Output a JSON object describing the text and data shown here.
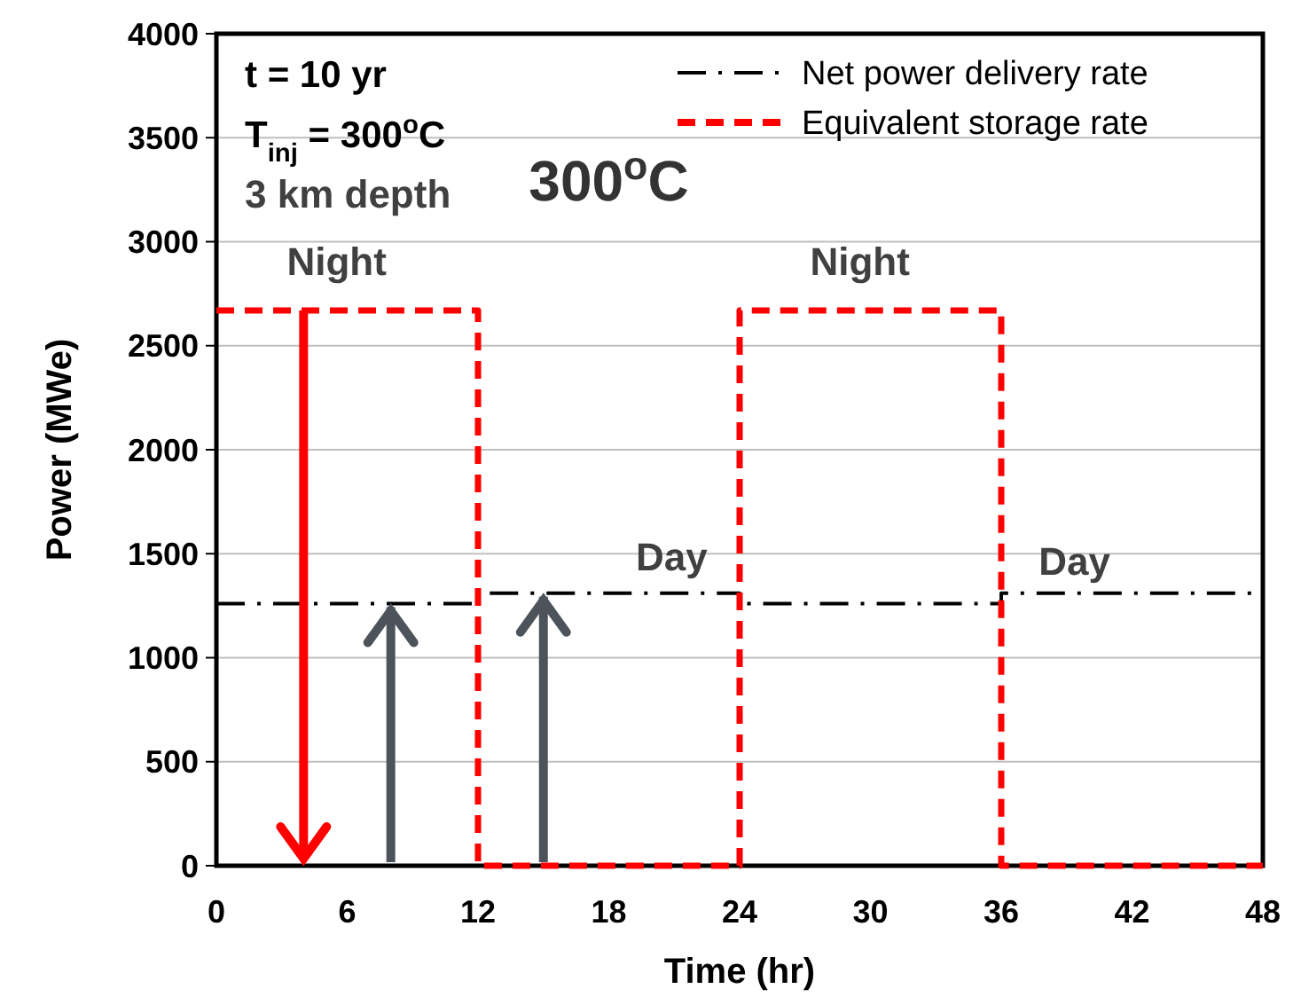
{
  "chart_data": {
    "type": "line",
    "title": "300$^{o}$C",
    "xlabel": "Time (hr)",
    "ylabel": "Power (MWe)",
    "xlim": [
      0,
      48
    ],
    "xticks": [
      0,
      6,
      12,
      18,
      24,
      30,
      36,
      42,
      48
    ],
    "ylim": [
      0,
      4000
    ],
    "yticks": [
      0,
      500,
      1000,
      1500,
      2000,
      2500,
      3000,
      3500,
      4000
    ],
    "grid": "y",
    "legend": "top right",
    "series": [
      {
        "name": "Net power delivery rate",
        "color": "#000000",
        "line_style": "dashdot",
        "x": [
          0,
          12,
          12,
          24,
          24,
          36,
          36,
          48
        ],
        "values": [
          1260,
          1260,
          1310,
          1310,
          1260,
          1260,
          1310,
          1310
        ]
      },
      {
        "name": "Equivalent storage rate",
        "color": "#ff0000",
        "line_style": "dashed",
        "x": [
          0,
          12,
          12,
          24,
          24,
          36,
          36,
          48
        ],
        "values": [
          2670,
          2670,
          0,
          0,
          2670,
          2670,
          0,
          0
        ]
      }
    ],
    "annotations": [
      "t = 10 yr",
      "T$_{inj}$ = 300$^{o}$C",
      "3 km depth",
      "Night",
      "Night",
      "Day",
      "Day"
    ]
  }
}
